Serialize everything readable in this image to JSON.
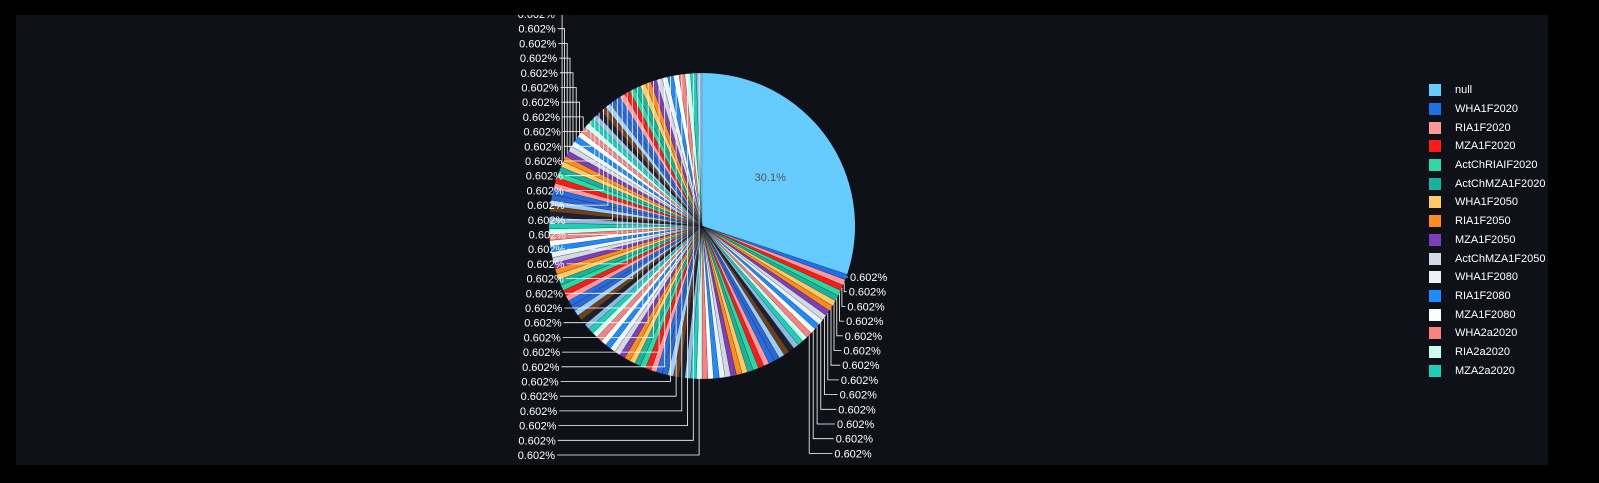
{
  "chart_data": {
    "type": "pie",
    "slice_count": 117,
    "big_slice": {
      "label": "null",
      "value": 30.1,
      "text": "30.1%",
      "color": "#66ccff"
    },
    "small_slice_value": 0.602,
    "small_slice_text": "0.602%",
    "palette": [
      "#1f6feb",
      "#ff9999",
      "#ff1a1a",
      "#2bd9a3",
      "#16b39e",
      "#ffc966",
      "#ff8c1a",
      "#7b3fb8",
      "#d1d9e6",
      "#eef2f7",
      "#1a8cff",
      "#ffffff",
      "#ff8080",
      "#ccffee",
      "#1ad1b8",
      "#8fb8e0",
      "#1a2233",
      "#6e3f1a",
      "#99ccff",
      "#3366cc"
    ],
    "legend_placement": "right",
    "legend": [
      {
        "label": "null",
        "color": "#66ccff"
      },
      {
        "label": "WHA1F2020",
        "color": "#1f6feb"
      },
      {
        "label": "RIA1F2020",
        "color": "#ff9999"
      },
      {
        "label": "MZA1F2020",
        "color": "#ff1a1a"
      },
      {
        "label": "ActChRIAIF2020",
        "color": "#2bd9a3"
      },
      {
        "label": "ActChMZA1F2020",
        "color": "#16b39e"
      },
      {
        "label": "WHA1F2050",
        "color": "#ffc966"
      },
      {
        "label": "RIA1F2050",
        "color": "#ff8c1a"
      },
      {
        "label": "MZA1F2050",
        "color": "#7b3fb8"
      },
      {
        "label": "ActChMZA1F2050",
        "color": "#d1d9e6"
      },
      {
        "label": "WHA1F2080",
        "color": "#eef2f7"
      },
      {
        "label": "RIA1F2080",
        "color": "#1a8cff"
      },
      {
        "label": "MZA1F2080",
        "color": "#ffffff"
      },
      {
        "label": "WHA2a2020",
        "color": "#ff8080"
      },
      {
        "label": "RIA2a2020",
        "color": "#ccffee"
      },
      {
        "label": "MZA2a2020",
        "color": "#1ad1b8"
      }
    ]
  }
}
